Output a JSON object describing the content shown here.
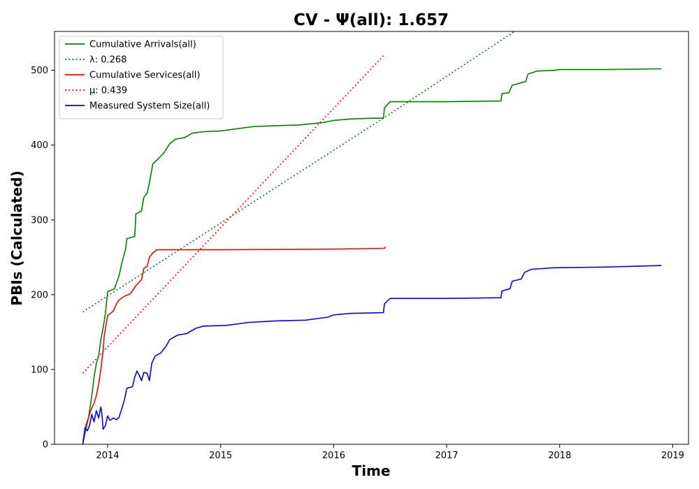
{
  "chart_data": {
    "type": "line",
    "title": "CV -  Ψ(all): 1.657",
    "xlabel": "Time",
    "ylabel": "PBIs (Calculated)",
    "xlim": [
      2013.53,
      2019.14
    ],
    "ylim": [
      0,
      552
    ],
    "xticks": [
      2014,
      2015,
      2016,
      2017,
      2018,
      2019
    ],
    "yticks": [
      0,
      100,
      200,
      300,
      400,
      500
    ],
    "grid": false,
    "legend_position": "upper-left",
    "series": [
      {
        "name": "Cumulative Arrivals(all)",
        "style": "solid",
        "color": "#008000",
        "points": [
          [
            2013.78,
            0
          ],
          [
            2013.8,
            15
          ],
          [
            2013.83,
            35
          ],
          [
            2013.86,
            65
          ],
          [
            2013.88,
            90
          ],
          [
            2013.9,
            108
          ],
          [
            2013.92,
            118
          ],
          [
            2013.94,
            140
          ],
          [
            2013.96,
            155
          ],
          [
            2013.98,
            175
          ],
          [
            2014.0,
            204
          ],
          [
            2014.06,
            208
          ],
          [
            2014.1,
            225
          ],
          [
            2014.13,
            245
          ],
          [
            2014.16,
            262
          ],
          [
            2014.17,
            275
          ],
          [
            2014.24,
            278
          ],
          [
            2014.25,
            308
          ],
          [
            2014.3,
            312
          ],
          [
            2014.32,
            330
          ],
          [
            2014.35,
            336
          ],
          [
            2014.37,
            350
          ],
          [
            2014.4,
            375
          ],
          [
            2014.45,
            382
          ],
          [
            2014.5,
            390
          ],
          [
            2014.55,
            402
          ],
          [
            2014.6,
            408
          ],
          [
            2014.68,
            410
          ],
          [
            2014.75,
            416
          ],
          [
            2014.85,
            418
          ],
          [
            2015.0,
            419
          ],
          [
            2015.15,
            422
          ],
          [
            2015.3,
            425
          ],
          [
            2015.5,
            426
          ],
          [
            2015.7,
            427
          ],
          [
            2015.9,
            430
          ],
          [
            2016.0,
            433
          ],
          [
            2016.15,
            435
          ],
          [
            2016.35,
            436
          ],
          [
            2016.44,
            436
          ],
          [
            2016.45,
            450
          ],
          [
            2016.5,
            458
          ],
          [
            2017.0,
            458
          ],
          [
            2017.48,
            459
          ],
          [
            2017.49,
            469
          ],
          [
            2017.55,
            470
          ],
          [
            2017.58,
            480
          ],
          [
            2017.65,
            483
          ],
          [
            2017.7,
            485
          ],
          [
            2017.72,
            495
          ],
          [
            2017.8,
            499
          ],
          [
            2017.95,
            500
          ],
          [
            2018.0,
            501
          ],
          [
            2018.4,
            501
          ],
          [
            2018.9,
            502
          ]
        ]
      },
      {
        "name": "λ: 0.268",
        "style": "dotted",
        "color": "#008000",
        "points": [
          [
            2013.78,
            177
          ],
          [
            2016.45,
            437
          ],
          [
            2017.6,
            552
          ]
        ]
      },
      {
        "name": "Cumulative Services(all)",
        "style": "solid",
        "color": "#ff0000",
        "points": [
          [
            2013.78,
            0
          ],
          [
            2013.8,
            22
          ],
          [
            2013.83,
            35
          ],
          [
            2013.85,
            45
          ],
          [
            2013.88,
            55
          ],
          [
            2013.9,
            65
          ],
          [
            2013.92,
            80
          ],
          [
            2013.94,
            100
          ],
          [
            2013.96,
            125
          ],
          [
            2013.97,
            145
          ],
          [
            2014.0,
            172
          ],
          [
            2014.05,
            178
          ],
          [
            2014.08,
            188
          ],
          [
            2014.1,
            193
          ],
          [
            2014.15,
            198
          ],
          [
            2014.2,
            201
          ],
          [
            2014.25,
            212
          ],
          [
            2014.3,
            220
          ],
          [
            2014.32,
            235
          ],
          [
            2014.35,
            238
          ],
          [
            2014.37,
            250
          ],
          [
            2014.4,
            256
          ],
          [
            2014.42,
            258
          ],
          [
            2014.43,
            260
          ],
          [
            2015.0,
            260
          ],
          [
            2016.0,
            261
          ],
          [
            2016.45,
            262
          ],
          [
            2016.46,
            264
          ]
        ]
      },
      {
        "name": "μ: 0.439",
        "style": "dotted",
        "color": "#ff0000",
        "points": [
          [
            2013.78,
            95
          ],
          [
            2016.45,
            521
          ]
        ]
      },
      {
        "name": "Measured System Size(all)",
        "style": "solid",
        "color": "#0000ff",
        "points": [
          [
            2013.78,
            0
          ],
          [
            2013.8,
            22
          ],
          [
            2013.82,
            18
          ],
          [
            2013.84,
            25
          ],
          [
            2013.86,
            40
          ],
          [
            2013.88,
            30
          ],
          [
            2013.9,
            45
          ],
          [
            2013.92,
            35
          ],
          [
            2013.94,
            50
          ],
          [
            2013.95,
            40
          ],
          [
            2013.96,
            20
          ],
          [
            2013.98,
            25
          ],
          [
            2014.0,
            38
          ],
          [
            2014.02,
            32
          ],
          [
            2014.05,
            35
          ],
          [
            2014.08,
            33
          ],
          [
            2014.1,
            36
          ],
          [
            2014.12,
            45
          ],
          [
            2014.15,
            60
          ],
          [
            2014.17,
            75
          ],
          [
            2014.22,
            77
          ],
          [
            2014.24,
            90
          ],
          [
            2014.26,
            98
          ],
          [
            2014.28,
            92
          ],
          [
            2014.3,
            85
          ],
          [
            2014.32,
            96
          ],
          [
            2014.35,
            95
          ],
          [
            2014.37,
            85
          ],
          [
            2014.39,
            108
          ],
          [
            2014.42,
            118
          ],
          [
            2014.47,
            122
          ],
          [
            2014.52,
            132
          ],
          [
            2014.55,
            140
          ],
          [
            2014.62,
            146
          ],
          [
            2014.7,
            148
          ],
          [
            2014.78,
            155
          ],
          [
            2014.85,
            158
          ],
          [
            2015.05,
            159
          ],
          [
            2015.25,
            163
          ],
          [
            2015.5,
            165
          ],
          [
            2015.75,
            166
          ],
          [
            2015.95,
            170
          ],
          [
            2016.0,
            173
          ],
          [
            2016.15,
            175
          ],
          [
            2016.44,
            176
          ],
          [
            2016.45,
            188
          ],
          [
            2016.5,
            195
          ],
          [
            2017.0,
            195
          ],
          [
            2017.48,
            196
          ],
          [
            2017.49,
            205
          ],
          [
            2017.56,
            208
          ],
          [
            2017.58,
            218
          ],
          [
            2017.66,
            221
          ],
          [
            2017.69,
            230
          ],
          [
            2017.75,
            234
          ],
          [
            2017.95,
            236
          ],
          [
            2018.4,
            237
          ],
          [
            2018.9,
            239
          ]
        ]
      }
    ]
  }
}
